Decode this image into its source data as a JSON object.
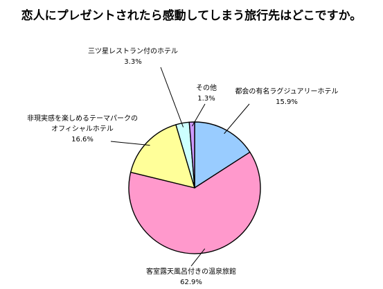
{
  "title": "恋人にプレゼントされたら感動してしまう旅行先はどこですか。",
  "chart_data": {
    "type": "pie",
    "title": "恋人にプレゼントされたら感動してしまう旅行先はどこですか。",
    "slices": [
      {
        "label": "都会の有名ラグジュアリーホテル",
        "value": 15.9,
        "display": "15.9%",
        "color": "#99ccff"
      },
      {
        "label": "客室露天風呂付きの温泉旅館",
        "value": 62.9,
        "display": "62.9%",
        "color": "#ff99cc"
      },
      {
        "label": "非現実感を楽しめるテーマパークのオフィシャルホテル",
        "value": 16.6,
        "display": "16.6%",
        "color": "#ffff99"
      },
      {
        "label": "三ツ星レストラン付のホテル",
        "value": 3.3,
        "display": "3.3%",
        "color": "#ccffff"
      },
      {
        "label": "その他",
        "value": 1.3,
        "display": "1.3%",
        "color": "#cc99ff"
      }
    ],
    "start_angle": "12 o'clock",
    "direction": "clockwise",
    "legend": "none"
  }
}
